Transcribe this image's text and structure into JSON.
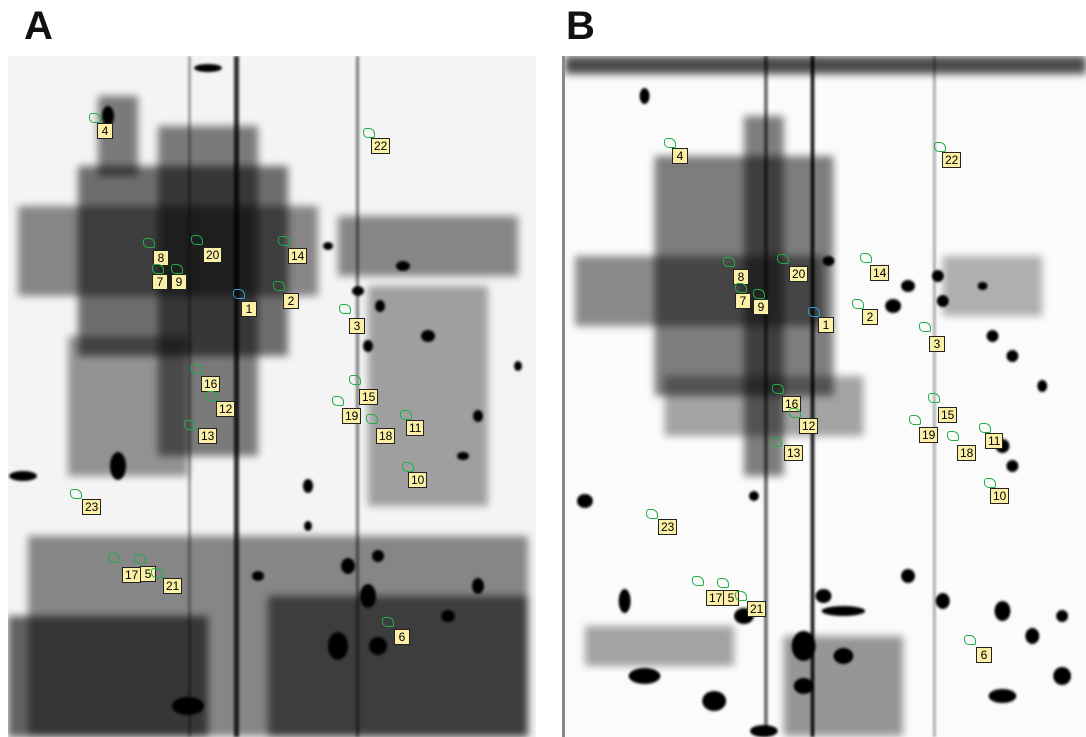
{
  "panels": [
    {
      "letter": "A",
      "spots": [
        {
          "label": "4"
        },
        {
          "label": "22"
        },
        {
          "label": "8"
        },
        {
          "label": "20"
        },
        {
          "label": "14"
        },
        {
          "label": "7"
        },
        {
          "label": "9"
        },
        {
          "label": "2"
        },
        {
          "label": "1"
        },
        {
          "label": "3"
        },
        {
          "label": "16"
        },
        {
          "label": "15"
        },
        {
          "label": "12"
        },
        {
          "label": "19"
        },
        {
          "label": "11"
        },
        {
          "label": "13"
        },
        {
          "label": "18"
        },
        {
          "label": "10"
        },
        {
          "label": "23"
        },
        {
          "label": "17"
        },
        {
          "label": "5"
        },
        {
          "label": "21"
        },
        {
          "label": "6"
        }
      ]
    },
    {
      "letter": "B",
      "spots": [
        {
          "label": "4"
        },
        {
          "label": "22"
        },
        {
          "label": "8"
        },
        {
          "label": "20"
        },
        {
          "label": "14"
        },
        {
          "label": "7"
        },
        {
          "label": "9"
        },
        {
          "label": "1"
        },
        {
          "label": "2"
        },
        {
          "label": "3"
        },
        {
          "label": "16"
        },
        {
          "label": "15"
        },
        {
          "label": "12"
        },
        {
          "label": "19"
        },
        {
          "label": "11"
        },
        {
          "label": "13"
        },
        {
          "label": "18"
        },
        {
          "label": "10"
        },
        {
          "label": "23"
        },
        {
          "label": "17"
        },
        {
          "label": "5"
        },
        {
          "label": "21"
        },
        {
          "label": "6"
        }
      ]
    }
  ],
  "colors": {
    "label_fill": "#fbf0a6",
    "outline_green": "#1fae4a",
    "outline_blue": "#2a9fd8"
  }
}
